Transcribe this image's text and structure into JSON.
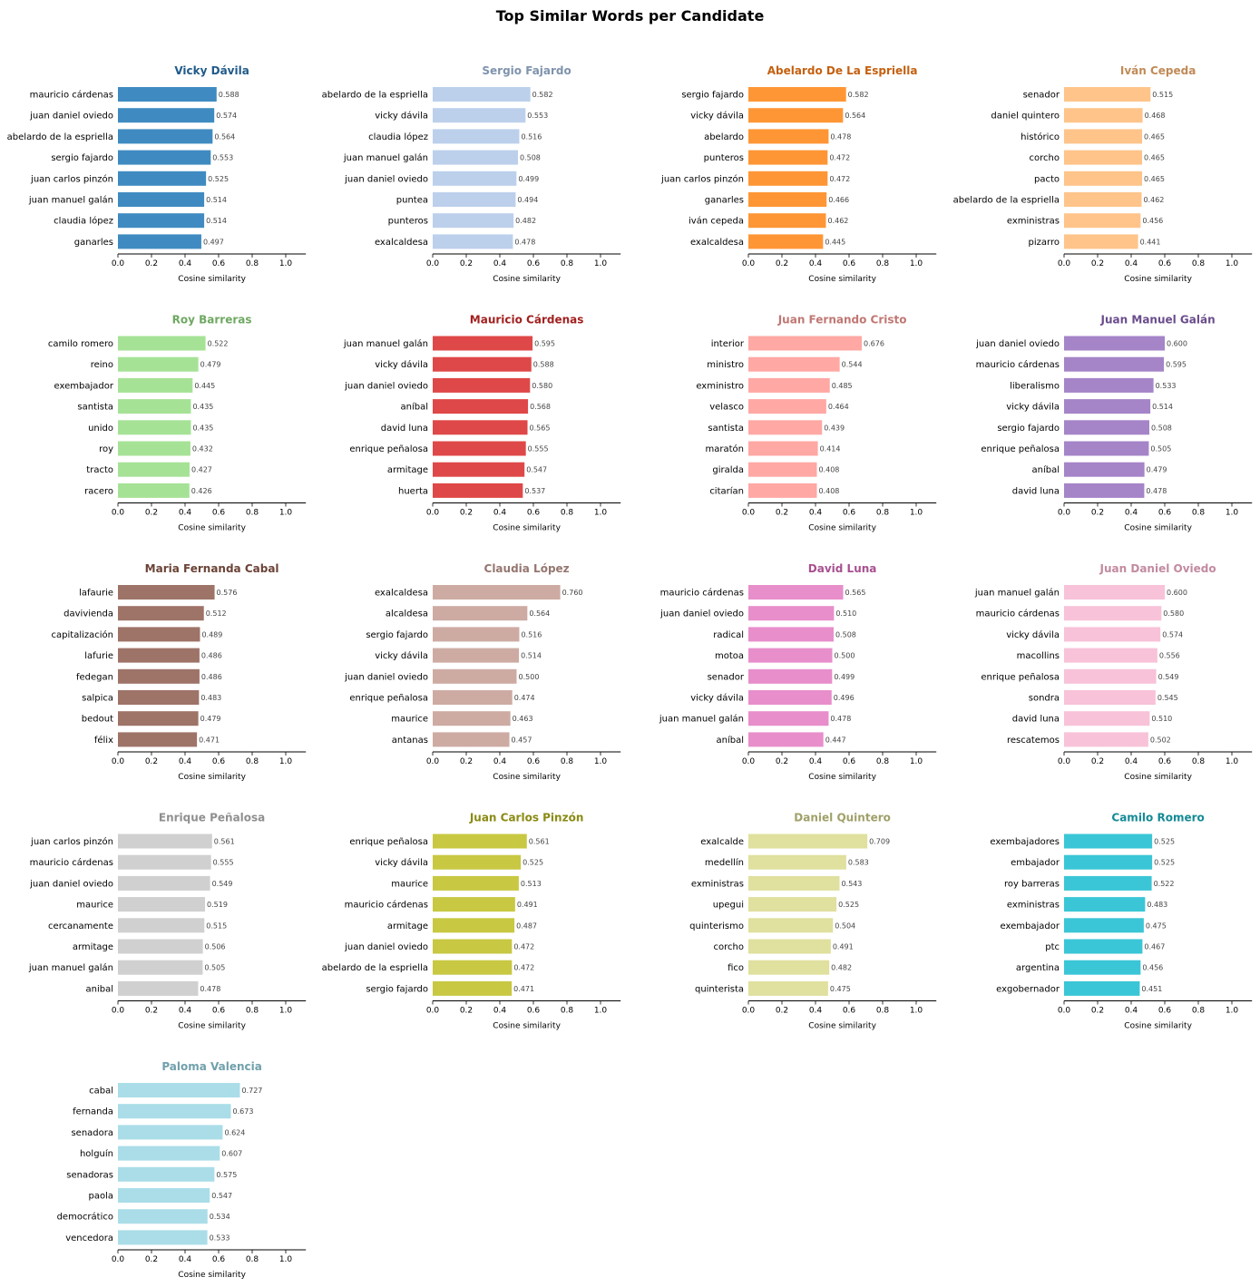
{
  "chart_data": {
    "type": "bar",
    "orientation": "horizontal",
    "title": "Top Similar Words per Candidate",
    "xlabel": "Cosine similarity",
    "xlim": [
      0,
      1.12
    ],
    "xticks": [
      "0.0",
      "0.2",
      "0.4",
      "0.6",
      "0.8",
      "1.0"
    ],
    "grid": false,
    "panels": [
      {
        "title": "Vicky Dávila",
        "bar_color": "#3f8bc1",
        "title_color": "#1f5a8a",
        "categories": [
          "mauricio cárdenas",
          "juan daniel oviedo",
          "abelardo de la espriella",
          "sergio fajardo",
          "juan carlos pinzón",
          "juan manuel galán",
          "claudia lópez",
          "ganarles"
        ],
        "values": [
          0.588,
          0.574,
          0.564,
          0.553,
          0.525,
          0.514,
          0.514,
          0.497
        ]
      },
      {
        "title": "Sergio Fajardo",
        "bar_color": "#bcd0ec",
        "title_color": "#7f93ad",
        "categories": [
          "abelardo de la espriella",
          "vicky dávila",
          "claudia lópez",
          "juan manuel galán",
          "juan daniel oviedo",
          "puntea",
          "punteros",
          "exalcaldesa"
        ],
        "values": [
          0.582,
          0.553,
          0.516,
          0.508,
          0.499,
          0.494,
          0.482,
          0.478
        ]
      },
      {
        "title": "Abelardo De La Espriella",
        "bar_color": "#ff9635",
        "title_color": "#c4600f",
        "categories": [
          "sergio fajardo",
          "vicky dávila",
          "abelardo",
          "punteros",
          "juan carlos pinzón",
          "ganarles",
          "iván cepeda",
          "exalcaldesa"
        ],
        "values": [
          0.582,
          0.564,
          0.478,
          0.472,
          0.472,
          0.466,
          0.462,
          0.445
        ]
      },
      {
        "title": "Iván Cepeda",
        "bar_color": "#ffc48a",
        "title_color": "#c08a57",
        "categories": [
          "senador",
          "daniel quintero",
          "histórico",
          "corcho",
          "pacto",
          "abelardo de la espriella",
          "exministras",
          "pizarro"
        ],
        "values": [
          0.515,
          0.468,
          0.465,
          0.465,
          0.465,
          0.462,
          0.456,
          0.441
        ]
      },
      {
        "title": "Roy Barreras",
        "bar_color": "#a6e296",
        "title_color": "#6fa862",
        "categories": [
          "camilo romero",
          "reino",
          "exembajador",
          "santista",
          "unido",
          "roy",
          "tracto",
          "racero"
        ],
        "values": [
          0.522,
          0.479,
          0.445,
          0.435,
          0.435,
          0.432,
          0.427,
          0.426
        ]
      },
      {
        "title": "Mauricio Cárdenas",
        "bar_color": "#df4848",
        "title_color": "#a2201f",
        "categories": [
          "juan manuel galán",
          "vicky dávila",
          "juan daniel oviedo",
          "aníbal",
          "david luna",
          "enrique peñalosa",
          "armitage",
          "huerta"
        ],
        "values": [
          0.595,
          0.588,
          0.58,
          0.568,
          0.565,
          0.555,
          0.547,
          0.537
        ]
      },
      {
        "title": "Juan Fernando Cristo",
        "bar_color": "#ffa8a4",
        "title_color": "#c07773",
        "categories": [
          "interior",
          "ministro",
          "exministro",
          "velasco",
          "santista",
          "maratón",
          "giralda",
          "citarían"
        ],
        "values": [
          0.676,
          0.544,
          0.485,
          0.464,
          0.439,
          0.414,
          0.408,
          0.408
        ]
      },
      {
        "title": "Juan Manuel Galán",
        "bar_color": "#a584c8",
        "title_color": "#6a4c8c",
        "categories": [
          "juan daniel oviedo",
          "mauricio cárdenas",
          "liberalismo",
          "vicky dávila",
          "sergio fajardo",
          "enrique peñalosa",
          "aníbal",
          "david luna"
        ],
        "values": [
          0.6,
          0.595,
          0.533,
          0.514,
          0.508,
          0.505,
          0.479,
          0.478
        ]
      },
      {
        "title": "Maria Fernanda Cabal",
        "bar_color": "#9e7368",
        "title_color": "#6b4337",
        "categories": [
          "lafaurie",
          "davivienda",
          "capitalización",
          "lafurie",
          "fedegan",
          "salpica",
          "bedout",
          "félix"
        ],
        "values": [
          0.576,
          0.512,
          0.489,
          0.486,
          0.486,
          0.483,
          0.479,
          0.471
        ]
      },
      {
        "title": "Claudia López",
        "bar_color": "#cdaba3",
        "title_color": "#957670",
        "categories": [
          "exalcaldesa",
          "alcaldesa",
          "sergio fajardo",
          "vicky dávila",
          "juan daniel oviedo",
          "enrique peñalosa",
          "maurice",
          "antanas"
        ],
        "values": [
          0.76,
          0.564,
          0.516,
          0.514,
          0.5,
          0.474,
          0.463,
          0.457
        ]
      },
      {
        "title": "David Luna",
        "bar_color": "#e88ecb",
        "title_color": "#a85090",
        "categories": [
          "mauricio cárdenas",
          "juan daniel oviedo",
          "radical",
          "motoa",
          "senador",
          "vicky dávila",
          "juan manuel galán",
          "aníbal"
        ],
        "values": [
          0.565,
          0.51,
          0.508,
          0.5,
          0.499,
          0.496,
          0.478,
          0.447
        ]
      },
      {
        "title": "Juan Daniel Oviedo",
        "bar_color": "#f8c2d8",
        "title_color": "#c28aa0",
        "categories": [
          "juan manuel galán",
          "mauricio cárdenas",
          "vicky dávila",
          "macollins",
          "enrique peñalosa",
          "sondra",
          "david luna",
          "rescatemos"
        ],
        "values": [
          0.6,
          0.58,
          0.574,
          0.556,
          0.549,
          0.545,
          0.51,
          0.502
        ]
      },
      {
        "title": "Enrique Peñalosa",
        "bar_color": "#d0d0d0",
        "title_color": "#8f8f8f",
        "categories": [
          "juan carlos pinzón",
          "mauricio cárdenas",
          "juan daniel oviedo",
          "maurice",
          "cercanamente",
          "armitage",
          "juan manuel galán",
          "anibal"
        ],
        "values": [
          0.561,
          0.555,
          0.549,
          0.519,
          0.515,
          0.506,
          0.505,
          0.478
        ]
      },
      {
        "title": "Juan Carlos Pinzón",
        "bar_color": "#c8c843",
        "title_color": "#8a8a14",
        "categories": [
          "enrique peñalosa",
          "vicky dávila",
          "maurice",
          "mauricio cárdenas",
          "armitage",
          "juan daniel oviedo",
          "abelardo de la espriella",
          "sergio fajardo"
        ],
        "values": [
          0.561,
          0.525,
          0.513,
          0.491,
          0.487,
          0.472,
          0.472,
          0.471
        ]
      },
      {
        "title": "Daniel Quintero",
        "bar_color": "#e0e09f",
        "title_color": "#a0a06a",
        "categories": [
          "exalcalde",
          "medellín",
          "exministras",
          "upegui",
          "quinterismo",
          "corcho",
          "fico",
          "quinterista"
        ],
        "values": [
          0.709,
          0.583,
          0.543,
          0.525,
          0.504,
          0.491,
          0.482,
          0.475
        ]
      },
      {
        "title": "Camilo Romero",
        "bar_color": "#3ac6d6",
        "title_color": "#148a96",
        "categories": [
          "exembajadores",
          "embajador",
          "roy barreras",
          "exministras",
          "exembajador",
          "ptc",
          "argentina",
          "exgobernador"
        ],
        "values": [
          0.525,
          0.525,
          0.522,
          0.483,
          0.475,
          0.467,
          0.456,
          0.451
        ]
      },
      {
        "title": "Paloma Valencia",
        "bar_color": "#aadde8",
        "title_color": "#70a0ab",
        "categories": [
          "cabal",
          "fernanda",
          "senadora",
          "holguín",
          "senadoras",
          "paola",
          "democrático",
          "vencedora"
        ],
        "values": [
          0.727,
          0.673,
          0.624,
          0.607,
          0.575,
          0.547,
          0.534,
          0.533
        ]
      }
    ]
  }
}
